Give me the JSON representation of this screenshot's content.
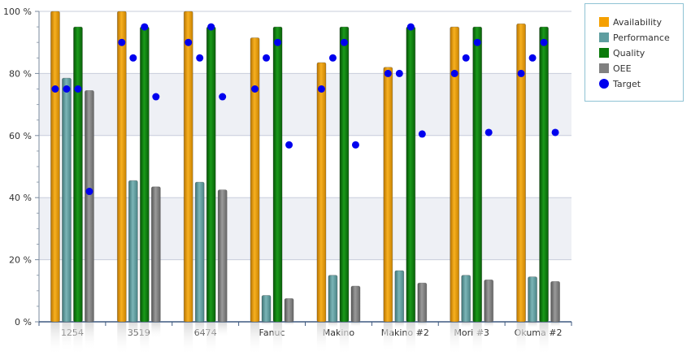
{
  "chart_data": {
    "type": "bar",
    "categories": [
      "1254",
      "3519",
      "6474",
      "Fanuc",
      "Makino",
      "Makino #2",
      "Mori #3",
      "Okuma #2"
    ],
    "series": [
      {
        "name": "Availability",
        "color": "#F5A000",
        "values": [
          100,
          100,
          100,
          91.5,
          83.5,
          82,
          95,
          96
        ]
      },
      {
        "name": "Performance",
        "color": "#5F9EA0",
        "values": [
          78.5,
          45.5,
          45,
          8.5,
          15,
          16.5,
          15,
          14.5
        ]
      },
      {
        "name": "Quality",
        "color": "#0A7A0A",
        "values": [
          95,
          95,
          95,
          95,
          95,
          95,
          95,
          95
        ]
      },
      {
        "name": "OEE",
        "color": "#808080",
        "values": [
          74.5,
          43.5,
          42.5,
          7.5,
          11.5,
          12.5,
          13.5,
          13
        ]
      }
    ],
    "target": {
      "name": "Target",
      "color": "#0000EE",
      "values": [
        [
          75,
          75,
          75,
          42
        ],
        [
          90,
          85,
          95,
          72.5
        ],
        [
          90,
          85,
          95,
          72.5
        ],
        [
          75,
          85,
          90,
          57
        ],
        [
          75,
          85,
          90,
          57
        ],
        [
          80,
          80,
          95,
          60.5
        ],
        [
          80,
          85,
          90,
          61
        ],
        [
          80,
          85,
          90,
          61
        ]
      ]
    },
    "ylim": [
      0,
      100
    ],
    "yticks": [
      0,
      20,
      40,
      60,
      80,
      100
    ],
    "ytick_labels": [
      "0 %",
      "20 %",
      "40 %",
      "60 %",
      "80 %",
      "100 %"
    ],
    "grid": true,
    "legend_position": "top-right",
    "xlabel": "",
    "ylabel": ""
  }
}
